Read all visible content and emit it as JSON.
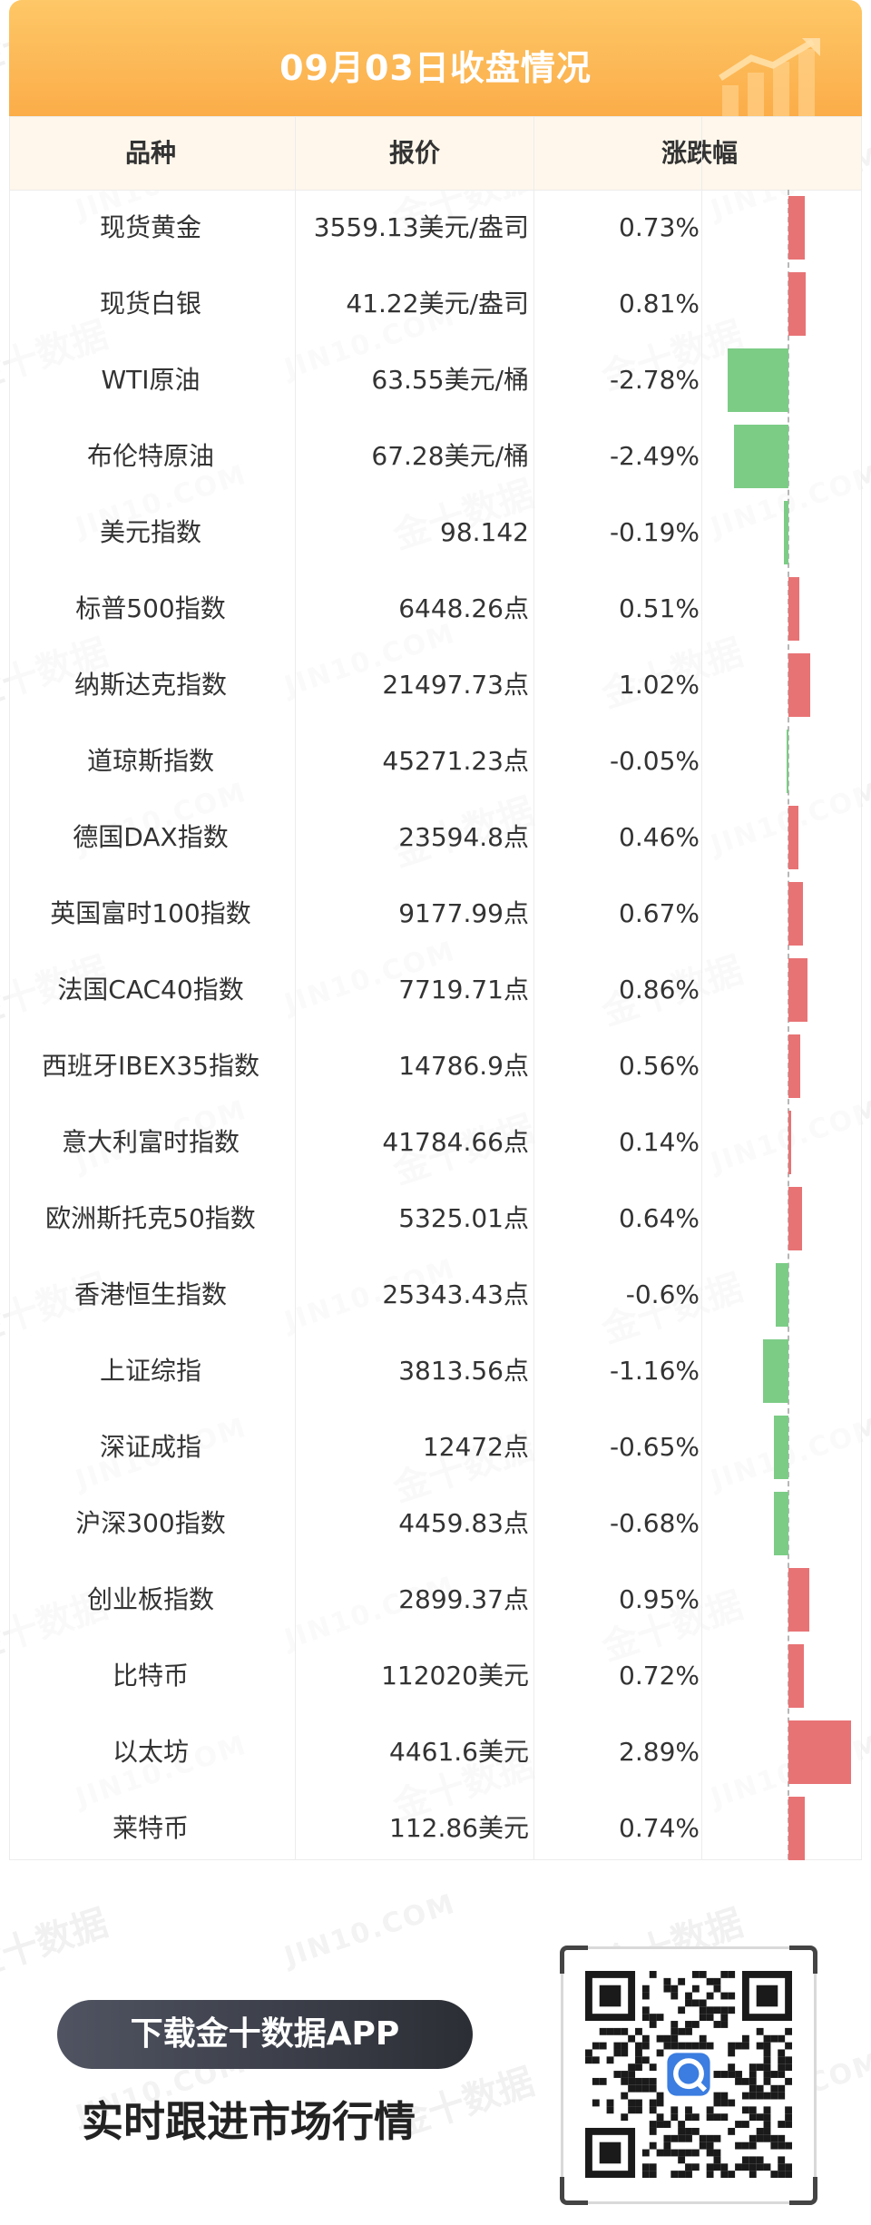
{
  "title": "09月03日收盘情况",
  "headers": {
    "name": "品种",
    "price": "报价",
    "change": "涨跌幅"
  },
  "watermark": {
    "cn": "金十数据",
    "en": "JIN10.COM"
  },
  "colors": {
    "up": "#e87375",
    "down": "#7ccc86",
    "banner": "#fbad49"
  },
  "rows": [
    {
      "name": "现货黄金",
      "price": "3559.13美元/盎司",
      "change": "0.73%",
      "pct": 0.73
    },
    {
      "name": "现货白银",
      "price": "41.22美元/盎司",
      "change": "0.81%",
      "pct": 0.81
    },
    {
      "name": "WTI原油",
      "price": "63.55美元/桶",
      "change": "-2.78%",
      "pct": -2.78
    },
    {
      "name": "布伦特原油",
      "price": "67.28美元/桶",
      "change": "-2.49%",
      "pct": -2.49
    },
    {
      "name": "美元指数",
      "price": "98.142",
      "change": "-0.19%",
      "pct": -0.19
    },
    {
      "name": "标普500指数",
      "price": "6448.26点",
      "change": "0.51%",
      "pct": 0.51
    },
    {
      "name": "纳斯达克指数",
      "price": "21497.73点",
      "change": "1.02%",
      "pct": 1.02
    },
    {
      "name": "道琼斯指数",
      "price": "45271.23点",
      "change": "-0.05%",
      "pct": -0.05
    },
    {
      "name": "德国DAX指数",
      "price": "23594.8点",
      "change": "0.46%",
      "pct": 0.46
    },
    {
      "name": "英国富时100指数",
      "price": "9177.99点",
      "change": "0.67%",
      "pct": 0.67
    },
    {
      "name": "法国CAC40指数",
      "price": "7719.71点",
      "change": "0.86%",
      "pct": 0.86
    },
    {
      "name": "西班牙IBEX35指数",
      "price": "14786.9点",
      "change": "0.56%",
      "pct": 0.56
    },
    {
      "name": "意大利富时指数",
      "price": "41784.66点",
      "change": "0.14%",
      "pct": 0.14
    },
    {
      "name": "欧洲斯托克50指数",
      "price": "5325.01点",
      "change": "0.64%",
      "pct": 0.64
    },
    {
      "name": "香港恒生指数",
      "price": "25343.43点",
      "change": "-0.6%",
      "pct": -0.6
    },
    {
      "name": "上证综指",
      "price": "3813.56点",
      "change": "-1.16%",
      "pct": -1.16
    },
    {
      "name": "深证成指",
      "price": "12472点",
      "change": "-0.65%",
      "pct": -0.65
    },
    {
      "name": "沪深300指数",
      "price": "4459.83点",
      "change": "-0.68%",
      "pct": -0.68
    },
    {
      "name": "创业板指数",
      "price": "2899.37点",
      "change": "0.95%",
      "pct": 0.95
    },
    {
      "name": "比特币",
      "price": "112020美元",
      "change": "0.72%",
      "pct": 0.72
    },
    {
      "name": "以太坊",
      "price": "4461.6美元",
      "change": "2.89%",
      "pct": 2.89
    },
    {
      "name": "莱特币",
      "price": "112.86美元",
      "change": "0.74%",
      "pct": 0.74
    }
  ],
  "promo": {
    "button": "下载金十数据APP",
    "tagline": "实时跟进市场行情"
  },
  "icons": {
    "banner": "rising-chart-icon",
    "qr": "qr-code",
    "qr_logo": "app-logo-icon"
  }
}
